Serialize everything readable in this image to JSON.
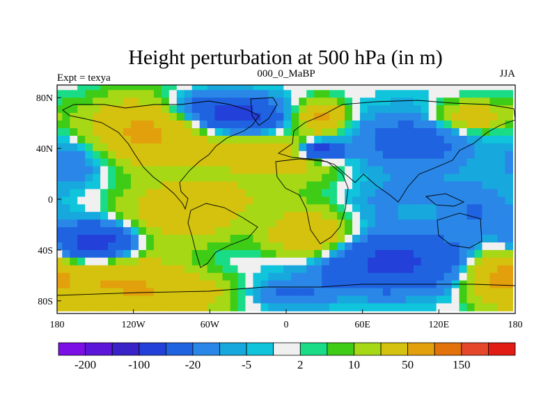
{
  "chart_data": {
    "type": "heatmap",
    "title": "Height perturbation at 500 hPa (in m)",
    "left_label": "Expt = texya",
    "center_label": "000_0_MaBP",
    "right_label": "JJA",
    "x_ticks": [
      "180",
      "120W",
      "60W",
      "0",
      "60E",
      "120E",
      "180"
    ],
    "x_tick_values": [
      -180,
      -120,
      -60,
      0,
      60,
      120,
      180
    ],
    "y_ticks": [
      "80N",
      "40N",
      "0",
      "40S",
      "80S"
    ],
    "y_tick_values": [
      80,
      40,
      0,
      -40,
      -80
    ],
    "xlim": [
      -180,
      180
    ],
    "ylim": [
      -90,
      90
    ],
    "colorbar": {
      "colors": [
        "#7b0fe6",
        "#5c16d9",
        "#3a22c9",
        "#2340d8",
        "#1f63e0",
        "#2a87e8",
        "#17a8dd",
        "#10c4dc",
        "#f0f0f0",
        "#1adc86",
        "#3fcc16",
        "#a6d816",
        "#d4c20e",
        "#e3a00d",
        "#e27209",
        "#e5472a",
        "#e01c14"
      ],
      "labels": [
        "-200",
        "-100",
        "-20",
        "-5",
        "2",
        "10",
        "50",
        "150"
      ]
    },
    "field_blobs": [
      {
        "lon": -110,
        "lat": 55,
        "value": 60,
        "rlon": 45,
        "rlat": 25
      },
      {
        "lon": -60,
        "lat": 70,
        "value": -40,
        "rlon": 45,
        "rlat": 15
      },
      {
        "lon": -35,
        "lat": 65,
        "value": -40,
        "rlon": 30,
        "rlat": 12
      },
      {
        "lon": -30,
        "lat": 35,
        "value": 25,
        "rlon": 50,
        "rlat": 15
      },
      {
        "lon": 10,
        "lat": 30,
        "value": 20,
        "rlon": 35,
        "rlat": 15
      },
      {
        "lon": 28,
        "lat": 65,
        "value": 60,
        "rlon": 18,
        "rlat": 12
      },
      {
        "lon": 28,
        "lat": 38,
        "value": -80,
        "rlon": 16,
        "rlat": 7
      },
      {
        "lon": 100,
        "lat": 45,
        "value": -30,
        "rlon": 50,
        "rlat": 25
      },
      {
        "lon": 145,
        "lat": 65,
        "value": 40,
        "rlon": 28,
        "rlat": 12
      },
      {
        "lon": -165,
        "lat": 30,
        "value": -20,
        "rlon": 25,
        "rlat": 20
      },
      {
        "lon": -40,
        "lat": 5,
        "value": 12,
        "rlon": 60,
        "rlat": 15
      },
      {
        "lon": -80,
        "lat": -10,
        "value": 40,
        "rlon": 45,
        "rlat": 22
      },
      {
        "lon": 20,
        "lat": -30,
        "value": 50,
        "rlon": 35,
        "rlat": 20
      },
      {
        "lon": -150,
        "lat": -35,
        "value": -80,
        "rlon": 30,
        "rlat": 15
      },
      {
        "lon": -140,
        "lat": -65,
        "value": 50,
        "rlon": 55,
        "rlat": 25
      },
      {
        "lon": -80,
        "lat": -75,
        "value": 30,
        "rlon": 40,
        "rlat": 15
      },
      {
        "lon": 80,
        "lat": -50,
        "value": -60,
        "rlon": 65,
        "rlat": 22
      },
      {
        "lon": 70,
        "lat": -10,
        "value": -10,
        "rlon": 30,
        "rlat": 15
      },
      {
        "lon": 150,
        "lat": -10,
        "value": -20,
        "rlon": 30,
        "rlat": 20
      },
      {
        "lon": 165,
        "lat": -60,
        "value": 50,
        "rlon": 25,
        "rlat": 20
      },
      {
        "lon": 0,
        "lat": -75,
        "value": -20,
        "rlon": 30,
        "rlat": 10
      },
      {
        "lon": 100,
        "lat": 5,
        "value": -10,
        "rlon": 40,
        "rlat": 10
      }
    ]
  }
}
